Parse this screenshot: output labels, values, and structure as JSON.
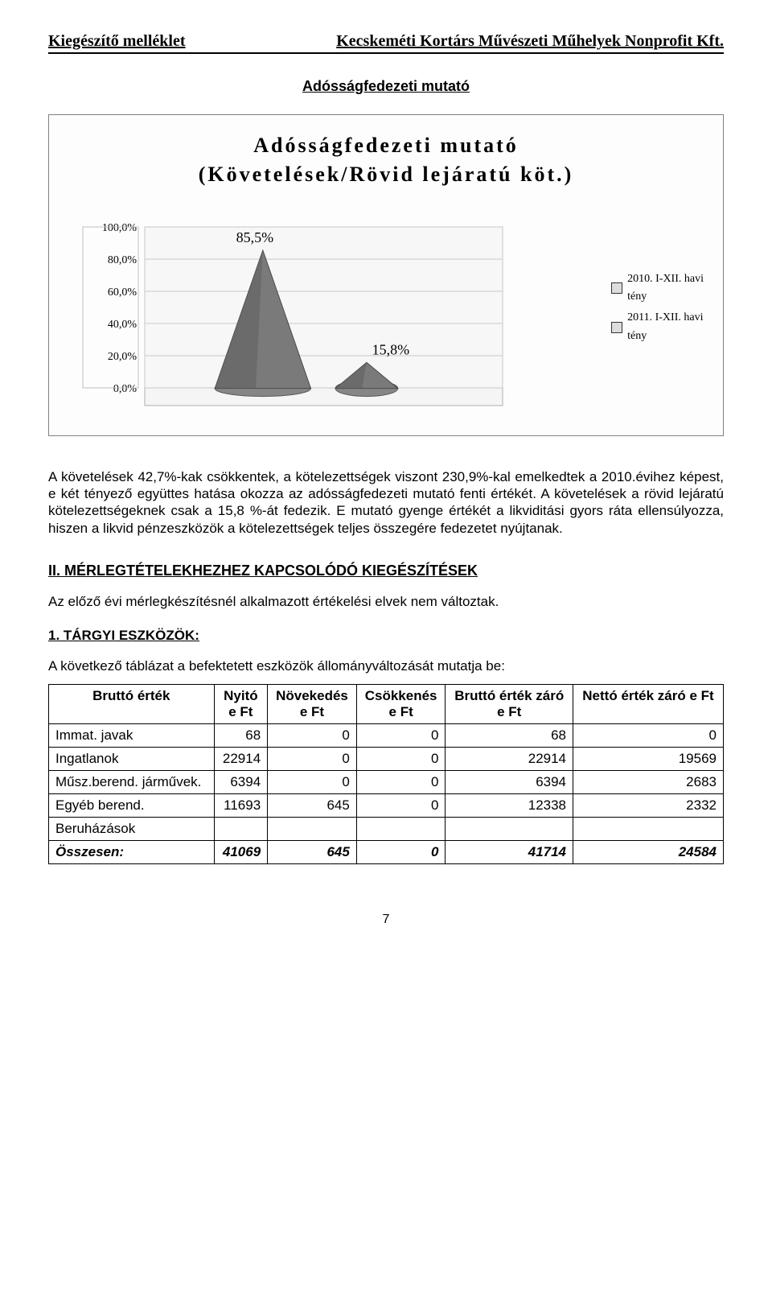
{
  "header": {
    "left": "Kiegészítő melléklet",
    "right": "Kecskeméti Kortárs Művészeti Műhelyek Nonprofit Kft."
  },
  "section_title": "Adósságfedezeti mutató",
  "chart": {
    "type": "3d-cone",
    "title_line1": "Adósságfedezeti mutató",
    "title_line2": "(Követelések/Rövid lejáratú köt.)",
    "title_fontsize": 26,
    "title_letter_spacing": 3,
    "values": [
      85.5,
      15.8
    ],
    "value_labels": [
      "85,5%",
      "15,8%"
    ],
    "y_ticks": [
      "100,0%",
      "80,0%",
      "60,0%",
      "40,0%",
      "20,0%",
      "0,0%"
    ],
    "ylim": [
      0,
      100
    ],
    "ytick_step": 20,
    "tick_fontsize": 14,
    "cone_fill": "#7a7a7a",
    "cone_edge": "#4a4a4a",
    "floor_fill": "#f5f5f5",
    "floor_edge": "#b0b0b0",
    "grid_color": "#c8c8c8",
    "background_color": "#fdfdfd",
    "legend": [
      {
        "color": "#dddddd",
        "label_line1": "2010. I-XII. havi",
        "label_line2": "tény"
      },
      {
        "color": "#dddddd",
        "label_line1": "2011. I-XII. havi",
        "label_line2": "tény"
      }
    ]
  },
  "body_text": "A követelések 42,7%-kak csökkentek, a kötelezettségek viszont 230,9%-kal emelkedtek a 2010.évihez képest, e két tényező együttes hatása okozza az adósságfedezeti mutató fenti értékét. A követelések a rövid lejáratú kötelezettségeknek csak a 15,8 %-át fedezik. E mutató gyenge értékét a likviditási gyors ráta ellensúlyozza, hiszen a likvid pénzeszközök a kötelezettségek teljes összegére fedezetet nyújtanak.",
  "h2": "II. MÉRLEGTÉTELEKHEZHEZ KAPCSOLÓDÓ KIEGÉSZÍTÉSEK",
  "p1": "Az előző évi mérlegkészítésnél alkalmazott értékelési elvek nem változtak.",
  "h3": "1. TÁRGYI ESZKÖZÖK:",
  "p2": "A következő táblázat a befektetett eszközök állományváltozását mutatja be:",
  "table": {
    "columns": [
      "Bruttó érték",
      "Nyitó\ne Ft",
      "Növekedés\ne Ft",
      "Csökkenés\ne Ft",
      "Bruttó érték záró\ne Ft",
      "Nettó érték záró      e Ft"
    ],
    "rows": [
      {
        "label": "Immat. javak",
        "cells": [
          "68",
          "0",
          "0",
          "68",
          "0"
        ]
      },
      {
        "label": "Ingatlanok",
        "cells": [
          "22914",
          "0",
          "0",
          "22914",
          "19569"
        ]
      },
      {
        "label": "Műsz.berend. járművek.",
        "cells": [
          "6394",
          "0",
          "0",
          "6394",
          "2683"
        ]
      },
      {
        "label": "Egyéb berend.",
        "cells": [
          "11693",
          "645",
          "0",
          "12338",
          "2332"
        ]
      },
      {
        "label": "Beruházások",
        "cells": [
          "",
          "",
          "",
          "",
          ""
        ]
      }
    ],
    "total": {
      "label": "Összesen:",
      "cells": [
        "41069",
        "645",
        "0",
        "41714",
        "24584"
      ]
    }
  },
  "page_number": "7"
}
